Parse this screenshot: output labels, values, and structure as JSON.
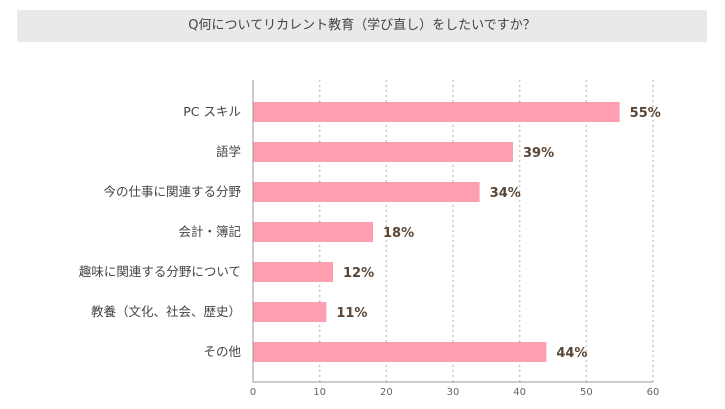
{
  "chart_data": {
    "type": "bar",
    "orientation": "horizontal",
    "title": "Q何についてリカレント教育（学び直し）をしたいですか？",
    "categories": [
      "PC スキル",
      "語学",
      "今の仕事に関連する分野",
      "会計・簿記",
      "趣味に関連する分野について",
      "教養（文化、社会、歴史）",
      "その他"
    ],
    "values": [
      55,
      39,
      34,
      18,
      12,
      11,
      44
    ],
    "labels": [
      "55%",
      "39%",
      "34%",
      "18%",
      "12%",
      "11%",
      "44%"
    ],
    "xlim": [
      0,
      60
    ],
    "xticks": [
      "0",
      "10",
      "20",
      "30",
      "40",
      "50",
      "60"
    ],
    "grid": true,
    "bar_color": "#ff9eb1",
    "label_color": "#5a4636"
  }
}
